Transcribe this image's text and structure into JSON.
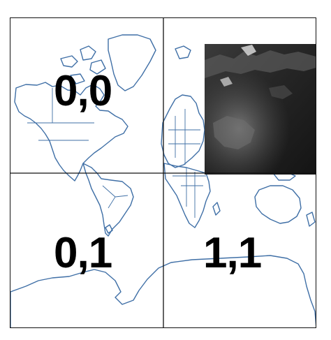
{
  "map": {
    "tile_labels": {
      "top_left": "0,0",
      "bottom_left": "0,1",
      "bottom_right": "1,1"
    },
    "colors": {
      "coastline": "#3f6fa6",
      "grid": "#111111",
      "satellite_tile": "#2a2a2a"
    },
    "overlay": "satellite-imagery-tile-asia"
  }
}
